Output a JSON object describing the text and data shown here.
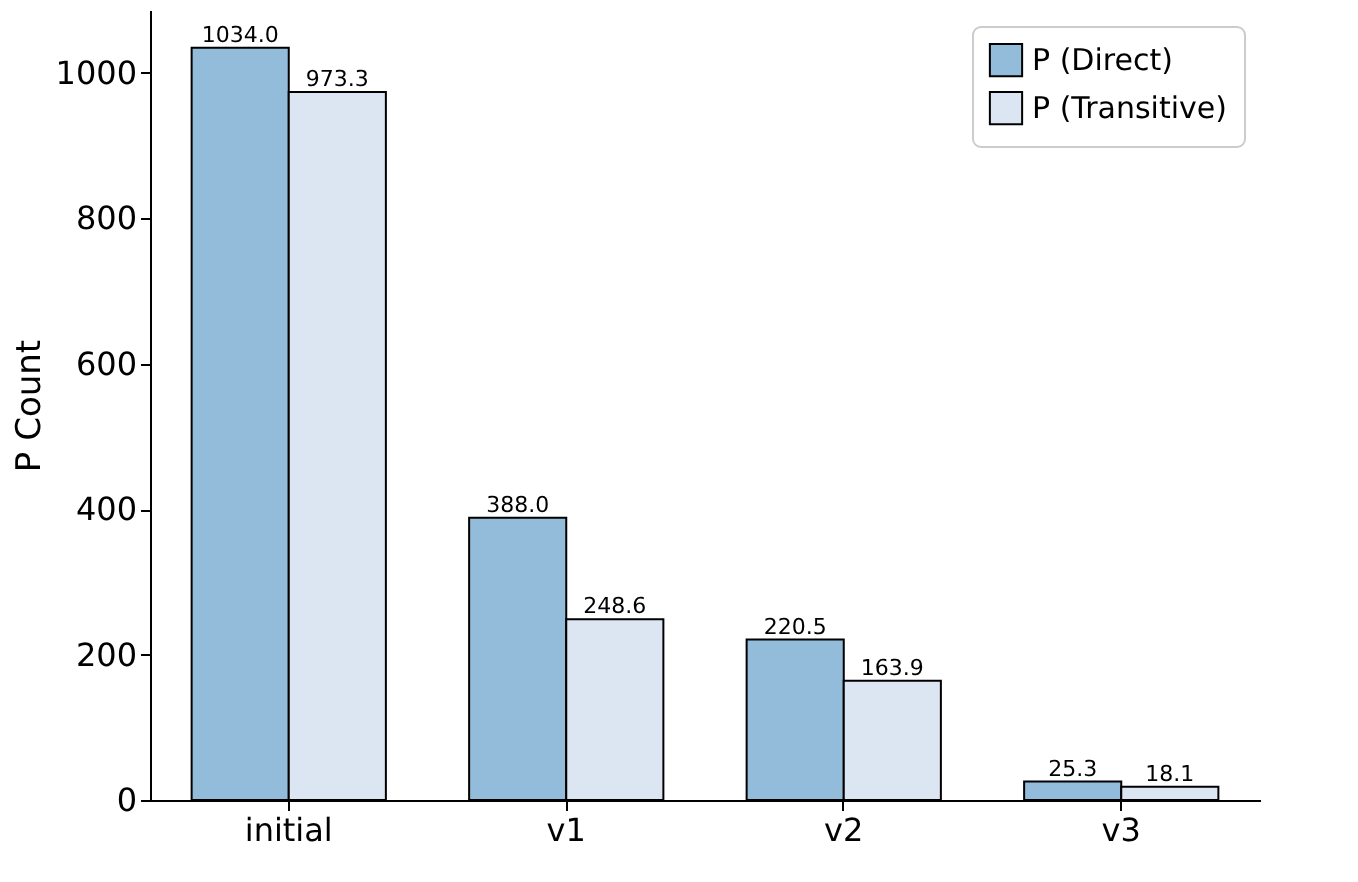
{
  "chart_data": {
    "type": "bar",
    "ylabel": "P Count",
    "categories": [
      "initial",
      "v1",
      "v2",
      "v3"
    ],
    "series": [
      {
        "name": "P (Direct)",
        "color": "#93bcdb",
        "values": [
          1034,
          388,
          220.5,
          25.3
        ],
        "value_labels": [
          "1034.0",
          "388.0",
          "220.5",
          "25.3"
        ]
      },
      {
        "name": "P (Transitive)",
        "color": "#dce6f2",
        "values": [
          973.3,
          248.6,
          163.9,
          18.1
        ],
        "value_labels": [
          "973.3",
          "248.6",
          "163.9",
          "18.1"
        ]
      }
    ],
    "ylim": [
      0,
      1086
    ],
    "yticks": [
      0,
      200,
      400,
      600,
      800,
      1000
    ],
    "legend": "top right",
    "grid": false
  }
}
